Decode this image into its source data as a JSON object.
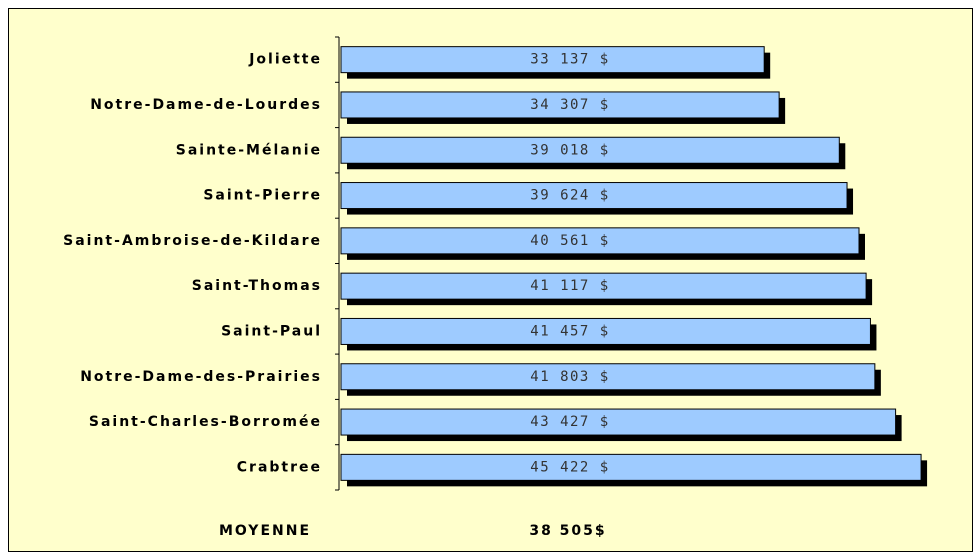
{
  "chart_data": {
    "type": "barh",
    "categories": [
      "Joliette",
      "Notre-Dame-de-Lourdes",
      "Sainte-Mélanie",
      "Saint-Pierre",
      "Saint-Ambroise-de-Kildare",
      "Saint-Thomas",
      "Saint-Paul",
      "Notre-Dame-des-Prairies",
      "Saint-Charles-Borromée",
      "Crabtree"
    ],
    "values": [
      33137,
      34307,
      39018,
      39624,
      40561,
      41117,
      41457,
      41803,
      43427,
      45422
    ],
    "value_labels": [
      "33 137 $",
      "34 307 $",
      "39 018 $",
      "39 624 $",
      "40 561 $",
      "41 117 $",
      "41 457 $",
      "41 803 $",
      "43 427 $",
      "45 422 $"
    ],
    "color": "#9ecbff",
    "xlim": [
      0,
      48000
    ],
    "annotations": [
      "MOYENNE",
      "38 505$"
    ]
  }
}
